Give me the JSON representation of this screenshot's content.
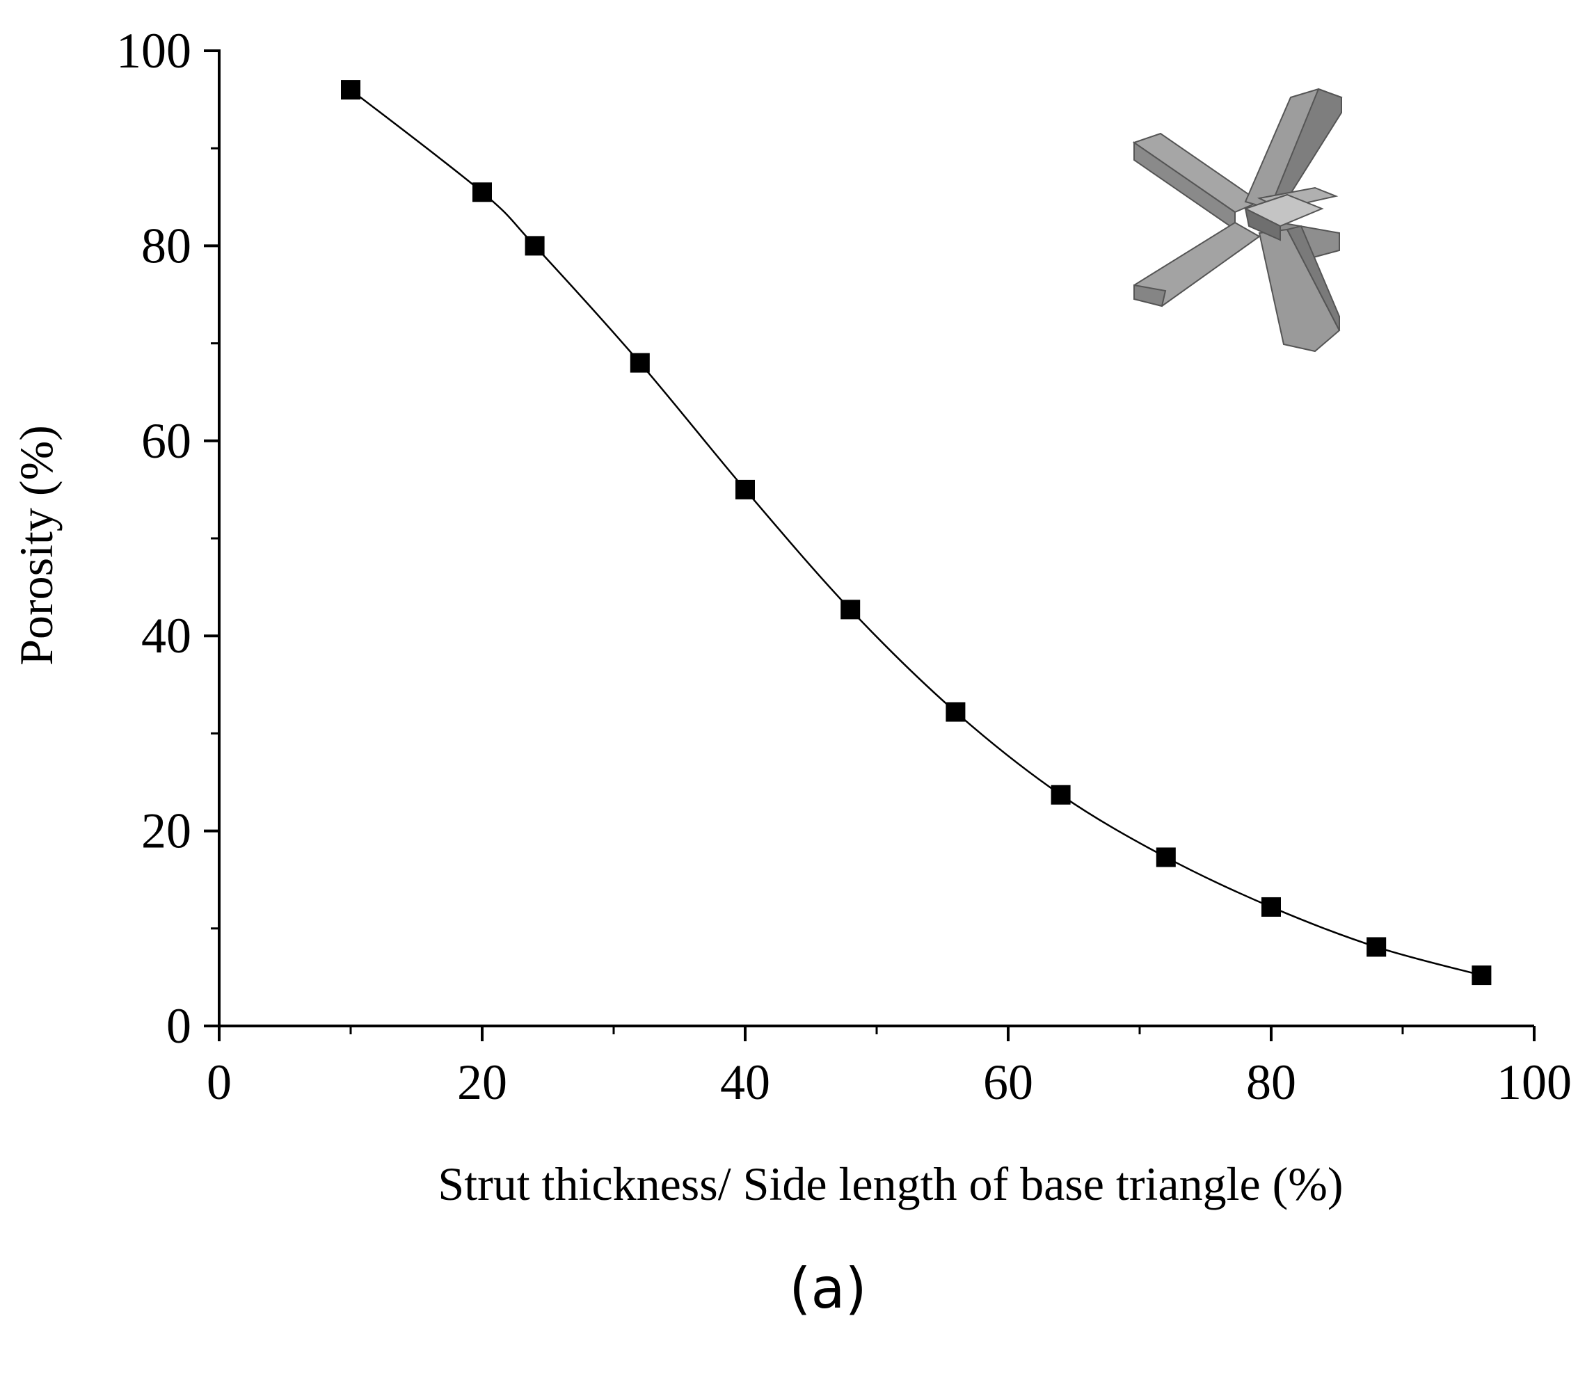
{
  "chart_data": {
    "type": "scatter",
    "title": "",
    "xlabel": "Strut thickness/ Side length of base triangle (%)",
    "ylabel": "Porosity (%)",
    "xlim": [
      0,
      100
    ],
    "ylim": [
      0,
      100
    ],
    "xticks": [
      "0",
      "20",
      "40",
      "60",
      "80",
      "100"
    ],
    "yticks": [
      "0",
      "20",
      "40",
      "60",
      "80",
      "100"
    ],
    "grid": false,
    "legend": "none",
    "series": [
      {
        "marker": "square",
        "color": "#000000",
        "fit_line": "smooth",
        "points": [
          {
            "x": 10,
            "y": 96
          },
          {
            "x": 20,
            "y": 85.5
          },
          {
            "x": 24,
            "y": 80
          },
          {
            "x": 32,
            "y": 68
          },
          {
            "x": 40,
            "y": 55
          },
          {
            "x": 48,
            "y": 42.7
          },
          {
            "x": 56,
            "y": 32.2
          },
          {
            "x": 64,
            "y": 23.7
          },
          {
            "x": 72,
            "y": 17.3
          },
          {
            "x": 80,
            "y": 12.2
          },
          {
            "x": 88,
            "y": 8.1
          },
          {
            "x": 96,
            "y": 5.2
          }
        ]
      }
    ],
    "inset": "strut-node-3d-illustration"
  },
  "panel_label": "(a)"
}
